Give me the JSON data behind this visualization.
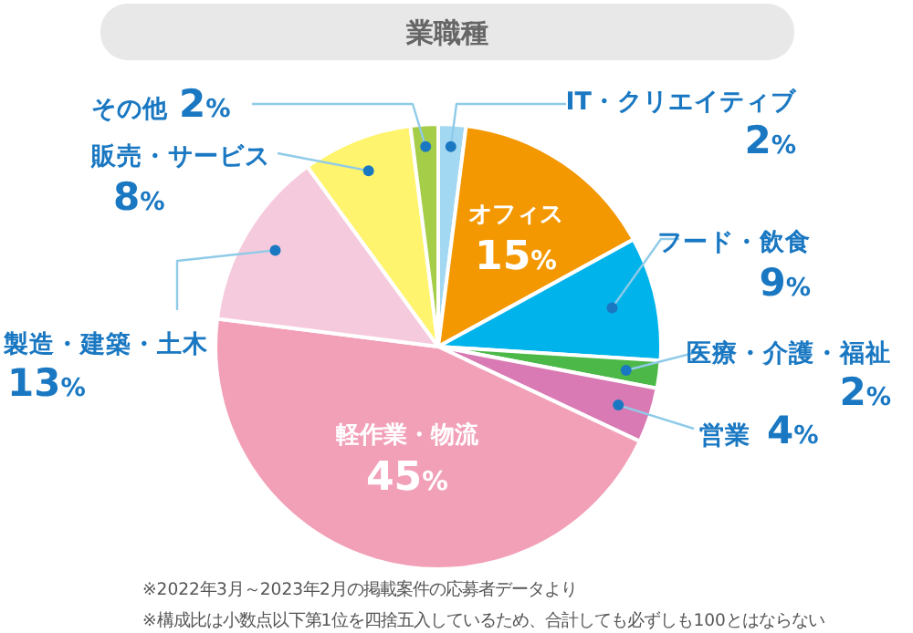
{
  "chart_data": {
    "type": "pie",
    "title": "業職種",
    "categories": [
      "IT・クリエイティブ",
      "オフィス",
      "フード・飲食",
      "医療・介護・福祉",
      "営業",
      "軽作業・物流",
      "製造・建築・土木",
      "販売・サービス",
      "その他"
    ],
    "values": [
      2,
      15,
      9,
      2,
      4,
      45,
      13,
      8,
      2
    ],
    "value_labels": [
      "2%",
      "15%",
      "9%",
      "2%",
      "4%",
      "45%",
      "13%",
      "8%",
      "2%"
    ],
    "colors": [
      "#a3d8f2",
      "#f39800",
      "#00b3ea",
      "#4cb848",
      "#d97ab4",
      "#f2a0b8",
      "#f6cadd",
      "#fff46e",
      "#a6cd48"
    ],
    "annotations": [
      "※2022年3月～2023年2月の掲載案件の応募者データより",
      "※構成比は小数点以下第1位を四捨五入しているため、合計しても必ずしも100とはならない"
    ]
  }
}
